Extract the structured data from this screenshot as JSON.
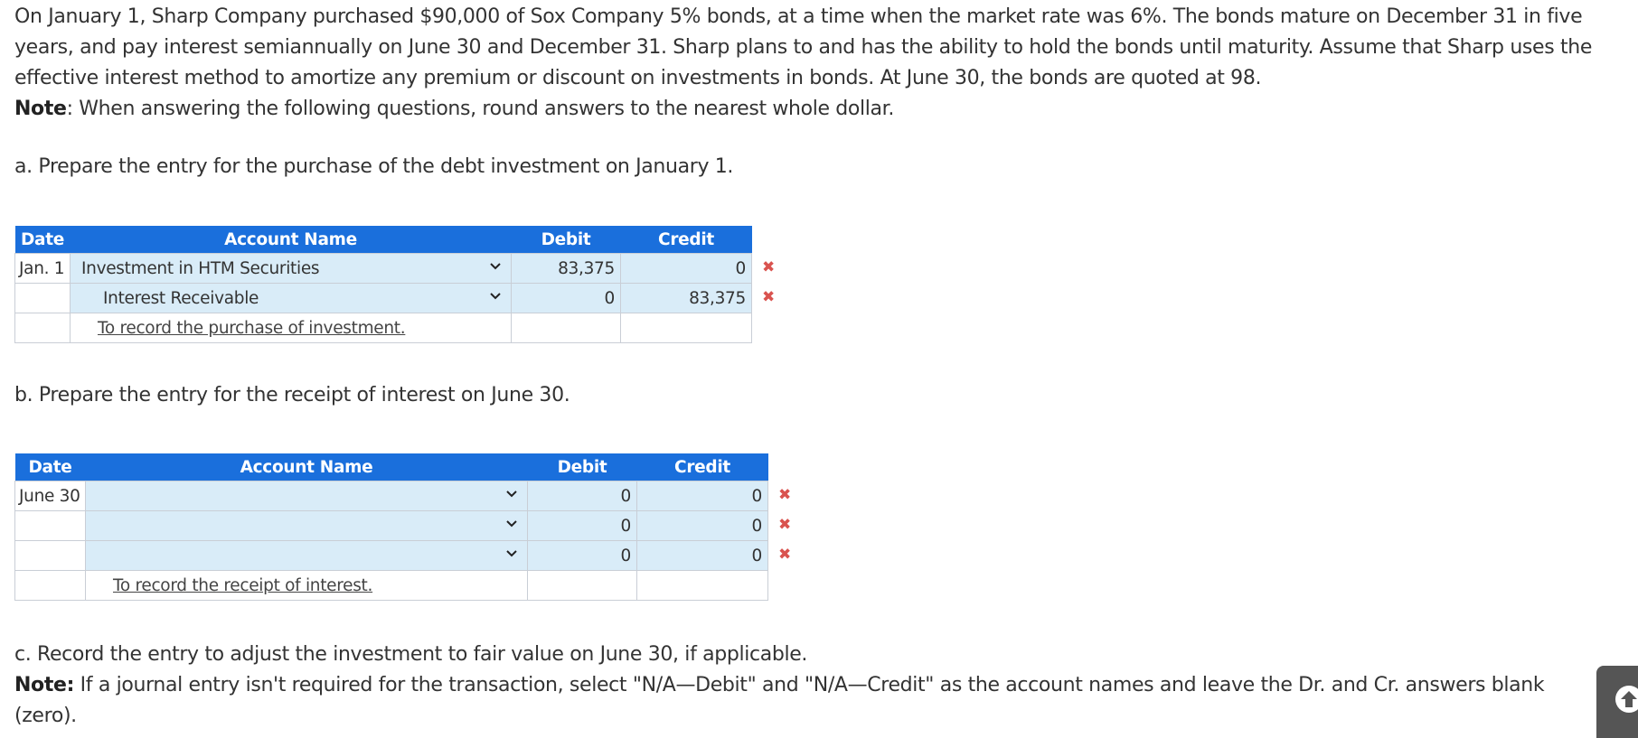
{
  "problem": {
    "text": "On January 1, Sharp Company purchased $90,000 of Sox Company 5% bonds, at a time when the market rate was 6%. The bonds mature on December 31 in five years, and pay interest semiannually on June 30 and December 31. Sharp plans to and has the ability to hold the bonds until maturity. Assume that Sharp uses the effective interest method to amortize any premium or discount on investments in bonds. At June 30, the bonds are quoted at 98.",
    "note_label": "Note",
    "note_text": ": When answering the following questions, round answers to the nearest whole dollar."
  },
  "part_a": {
    "question": "a. Prepare the entry for the purchase of the debt investment on January 1.",
    "headers": {
      "date": "Date",
      "account": "Account Name",
      "debit": "Debit",
      "credit": "Credit"
    },
    "rows": [
      {
        "date": "Jan. 1",
        "account": "Investment in HTM Securities",
        "debit": "83,375",
        "credit": "0"
      },
      {
        "date": "",
        "account": "Interest Receivable",
        "debit": "0",
        "credit": "83,375"
      }
    ],
    "memo": "To record the purchase of investment."
  },
  "part_b": {
    "question": "b. Prepare the entry for the receipt of interest on June 30.",
    "headers": {
      "date": "Date",
      "account": "Account Name",
      "debit": "Debit",
      "credit": "Credit"
    },
    "rows": [
      {
        "date": "June 30",
        "account": "",
        "debit": "0",
        "credit": "0"
      },
      {
        "date": "",
        "account": "",
        "debit": "0",
        "credit": "0"
      },
      {
        "date": "",
        "account": "",
        "debit": "0",
        "credit": "0"
      }
    ],
    "memo": "To record the receipt of interest."
  },
  "part_c": {
    "question": "c. Record the entry to adjust the investment to fair value on June 30, if applicable.",
    "note_label": "Note:",
    "note_text": " If a journal entry isn't required for the transaction, select \"N/A—Debit\" and \"N/A—Credit\" as the account names and leave the Dr. and Cr. answers blank (zero)."
  },
  "marks": {
    "incorrect_symbol": "✖",
    "incorrect_color": "#d9534f"
  },
  "icons": {
    "dropdown": "chevron-down-icon",
    "scroll_top": "arrow-up-icon"
  },
  "colors": {
    "header_bg": "#1a6fdc",
    "input_bg": "#d9ecf8"
  }
}
